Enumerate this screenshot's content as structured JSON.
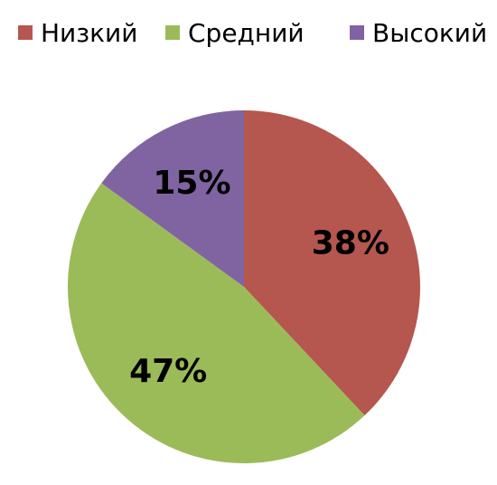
{
  "chart_data": {
    "type": "pie",
    "categories": [
      "Низкий",
      "Средний",
      "Высокий"
    ],
    "values": [
      38,
      47,
      15
    ],
    "value_labels": [
      "38%",
      "47%",
      "15%"
    ],
    "colors": [
      "#b5574f",
      "#9bbb59",
      "#8064a2"
    ],
    "legend": "top"
  }
}
